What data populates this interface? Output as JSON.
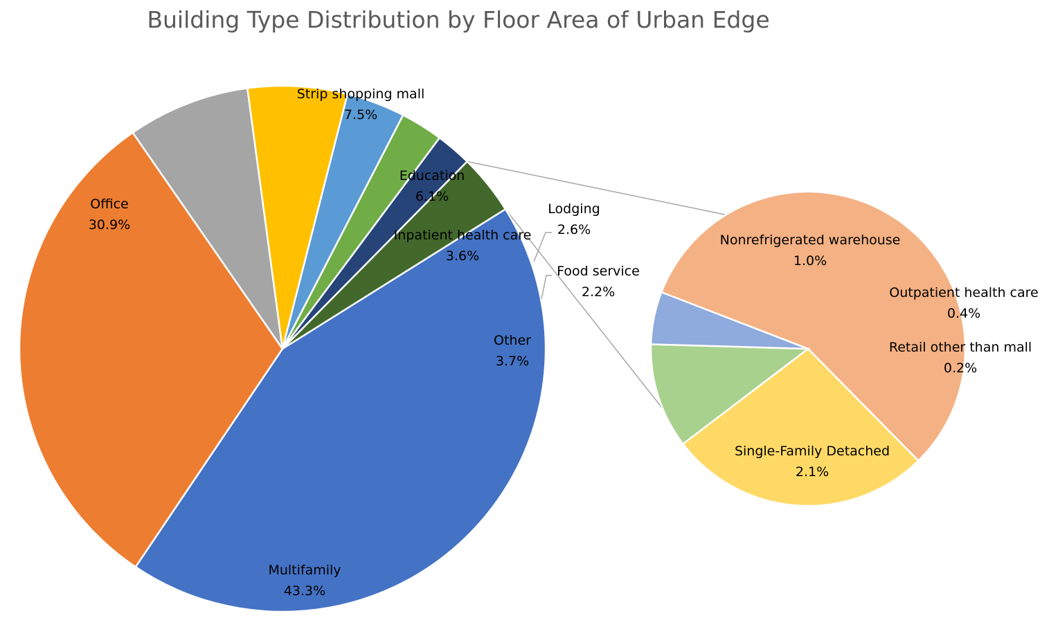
{
  "chart_data": {
    "type": "pie",
    "subtype": "pie-of-pie",
    "title": "Building Type Distribution by Floor Area of Urban Edge",
    "main_pie": {
      "slices": [
        {
          "label": "Multifamily",
          "value": 43.3,
          "display": "43.3%",
          "color": "#4472c4"
        },
        {
          "label": "Office",
          "value": 30.9,
          "display": "30.9%",
          "color": "#ed7d31"
        },
        {
          "label": "Strip shopping mall",
          "value": 7.5,
          "display": "7.5%",
          "color": "#a5a5a5"
        },
        {
          "label": "Education",
          "value": 6.1,
          "display": "6.1%",
          "color": "#ffc000"
        },
        {
          "label": "Inpatient health care",
          "value": 3.6,
          "display": "3.6%",
          "color": "#5b9bd5"
        },
        {
          "label": "Lodging",
          "value": 2.6,
          "display": "2.6%",
          "color": "#70ad47"
        },
        {
          "label": "Food service",
          "value": 2.2,
          "display": "2.2%",
          "color": "#264478"
        },
        {
          "label": "Other",
          "value": 3.7,
          "display": "3.7%",
          "color": "#43682b"
        }
      ]
    },
    "secondary_pie": {
      "of": "Other",
      "slices": [
        {
          "label": "Single-Family Detached",
          "value": 2.1,
          "display": "2.1%",
          "color": "#f4b183"
        },
        {
          "label": "Nonrefrigerated warehouse",
          "value": 1.0,
          "display": "1.0%",
          "color": "#ffd966"
        },
        {
          "label": "Outpatient health care",
          "value": 0.4,
          "display": "0.4%",
          "color": "#a9d18e"
        },
        {
          "label": "Retail other than mall",
          "value": 0.2,
          "display": "0.2%",
          "color": "#8faadc"
        }
      ]
    },
    "legend": "none",
    "data_labels": "category and percentage"
  }
}
